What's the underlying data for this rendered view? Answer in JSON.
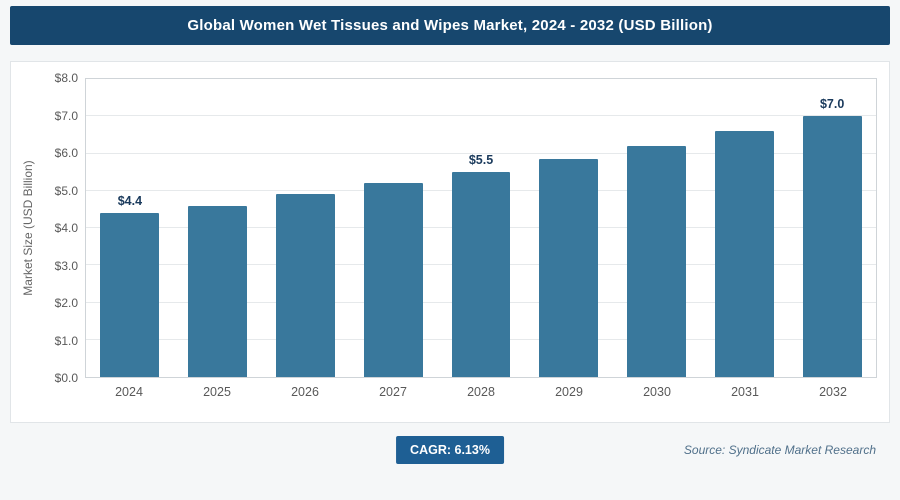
{
  "header": {
    "title": "Global Women Wet Tissues and Wipes Market, 2024 - 2032 (USD Billion)"
  },
  "footer": {
    "cagr_label": "CAGR: 6.13%",
    "source": "Source: Syndicate Market Research"
  },
  "colors": {
    "header_bg": "#17476e",
    "bar": "#39789c",
    "badge_bg": "#1e5f94",
    "grid": "#e6e9eb",
    "plot_border": "#cfd4d8"
  },
  "chart_data": {
    "type": "bar",
    "title": "Global Women Wet Tissues and Wipes Market, 2024 - 2032 (USD Billion)",
    "categories": [
      "2024",
      "2025",
      "2026",
      "2027",
      "2028",
      "2029",
      "2030",
      "2031",
      "2032"
    ],
    "values": [
      4.4,
      4.6,
      4.9,
      5.2,
      5.5,
      5.85,
      6.2,
      6.6,
      7.0
    ],
    "bar_labels": [
      "$4.4",
      "",
      "",
      "",
      "$5.5",
      "",
      "",
      "",
      "$7.0"
    ],
    "xlabel": "",
    "ylabel": "Market Size (USD Billion)",
    "ylim": [
      0,
      8
    ],
    "ytick_step": 1,
    "ytick_labels": [
      "$0.0",
      "$1.0",
      "$2.0",
      "$3.0",
      "$4.0",
      "$5.0",
      "$6.0",
      "$7.0",
      "$8.0"
    ],
    "grid": true,
    "legend": false
  }
}
